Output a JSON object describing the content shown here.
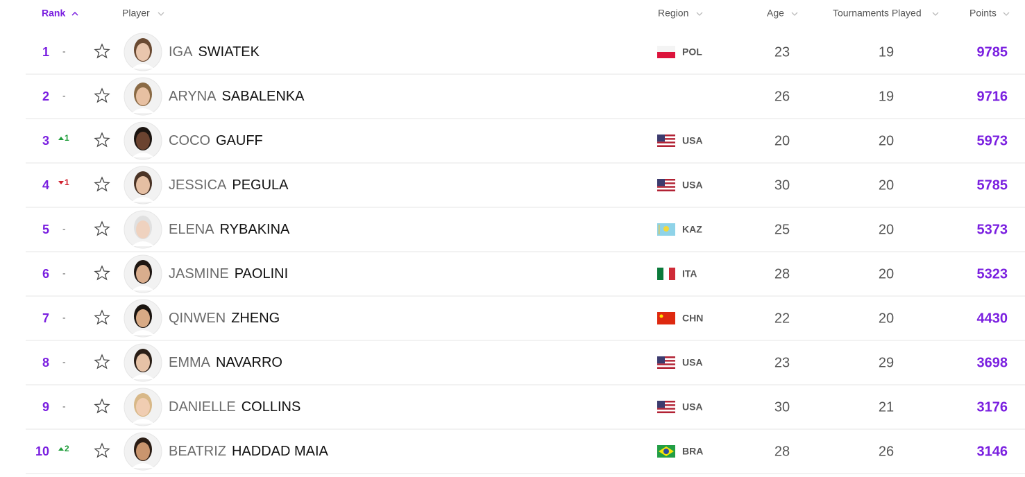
{
  "header": {
    "rank": "Rank",
    "player": "Player",
    "region": "Region",
    "age": "Age",
    "tournaments": "Tournaments Played",
    "points": "Points"
  },
  "rows": [
    {
      "rank": 1,
      "change": "-",
      "first_name": "IGA",
      "last_name": "SWIATEK",
      "region": "POL",
      "age": 23,
      "tournaments": 19,
      "points": 9785
    },
    {
      "rank": 2,
      "change": "-",
      "first_name": "ARYNA",
      "last_name": "SABALENKA",
      "age": 26,
      "tournaments": 19,
      "points": 9716
    },
    {
      "rank": 3,
      "change": "1",
      "trend": "up",
      "first_name": "COCO",
      "last_name": "GAUFF",
      "region": "USA",
      "age": 20,
      "tournaments": 20,
      "points": 5973
    },
    {
      "rank": 4,
      "change": "1",
      "trend": "down",
      "first_name": "JESSICA",
      "last_name": "PEGULA",
      "region": "USA",
      "age": 30,
      "tournaments": 20,
      "points": 5785
    },
    {
      "rank": 5,
      "change": "-",
      "first_name": "ELENA",
      "last_name": "RYBAKINA",
      "region": "KAZ",
      "age": 25,
      "tournaments": 20,
      "points": 5373
    },
    {
      "rank": 6,
      "change": "-",
      "first_name": "JASMINE",
      "last_name": "PAOLINI",
      "region": "ITA",
      "age": 28,
      "tournaments": 20,
      "points": 5323
    },
    {
      "rank": 7,
      "change": "-",
      "first_name": "QINWEN",
      "last_name": "ZHENG",
      "region": "CHN",
      "age": 22,
      "tournaments": 20,
      "points": 4430
    },
    {
      "rank": 8,
      "change": "-",
      "first_name": "EMMA",
      "last_name": "NAVARRO",
      "region": "USA",
      "age": 23,
      "tournaments": 29,
      "points": 3698
    },
    {
      "rank": 9,
      "change": "-",
      "first_name": "DANIELLE",
      "last_name": "COLLINS",
      "region": "USA",
      "age": 30,
      "tournaments": 21,
      "points": 3176
    },
    {
      "rank": 10,
      "change": "2",
      "trend": "up",
      "first_name": "BEATRIZ",
      "last_name": "HADDAD MAIA",
      "region": "BRA",
      "age": 28,
      "tournaments": 26,
      "points": 3146
    }
  ]
}
